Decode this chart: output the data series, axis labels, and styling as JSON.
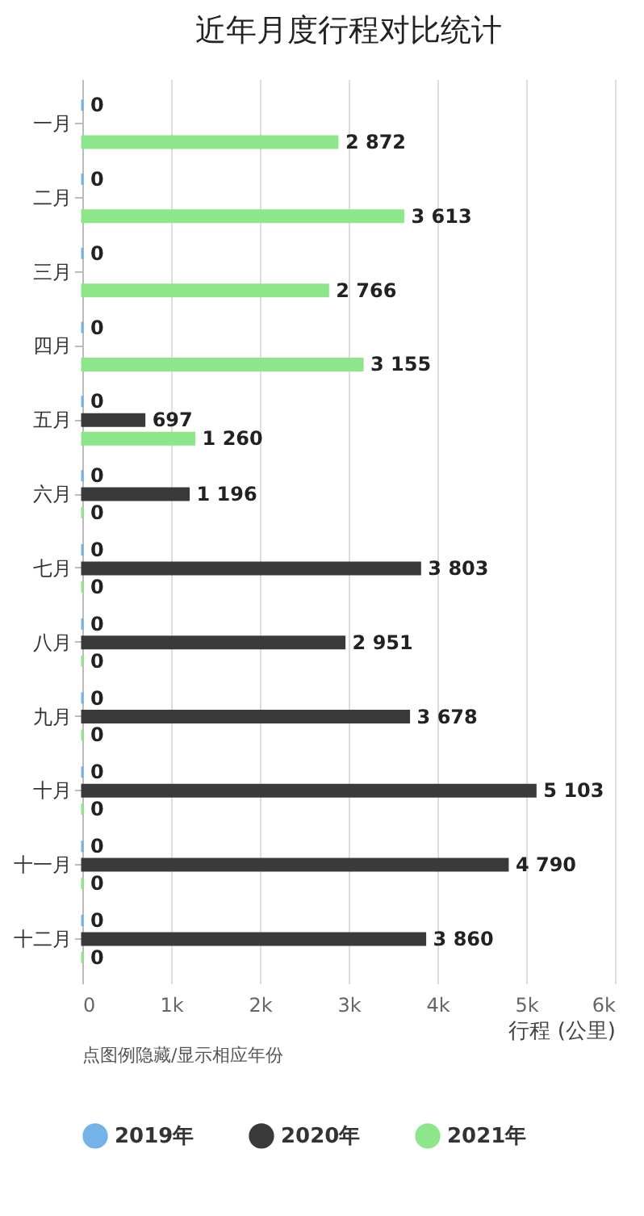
{
  "chart_data": {
    "type": "bar",
    "orientation": "horizontal",
    "title": "近年月度行程对比统计",
    "xlabel": "行程 (公里)",
    "categories": [
      "一月",
      "二月",
      "三月",
      "四月",
      "五月",
      "六月",
      "七月",
      "八月",
      "九月",
      "十月",
      "十一月",
      "十二月"
    ],
    "series": [
      {
        "name": "2019年",
        "color": "#73b3e8",
        "values": [
          0,
          0,
          0,
          0,
          0,
          0,
          0,
          0,
          0,
          0,
          0,
          0
        ],
        "value_labels": [
          "0",
          "0",
          "0",
          "0",
          "0",
          "0",
          "0",
          "0",
          "0",
          "0",
          "0",
          "0"
        ]
      },
      {
        "name": "2020年",
        "color": "#3a3a3a",
        "values": [
          null,
          null,
          null,
          null,
          697,
          1196,
          3803,
          2951,
          3678,
          5103,
          4790,
          3860
        ],
        "value_labels": [
          null,
          null,
          null,
          null,
          "697",
          "1 196",
          "3 803",
          "2 951",
          "3 678",
          "5 103",
          "4 790",
          "3 860"
        ]
      },
      {
        "name": "2021年",
        "color": "#8ee68a",
        "values": [
          2872,
          3613,
          2766,
          3155,
          1260,
          0,
          0,
          0,
          0,
          0,
          0,
          0
        ],
        "value_labels": [
          "2 872",
          "3 613",
          "2 766",
          "3 155",
          "1 260",
          "0",
          "0",
          "0",
          "0",
          "0",
          "0",
          "0"
        ]
      }
    ],
    "xlim": [
      0,
      6000
    ],
    "xticks": [
      0,
      {
        "value": 1000,
        "label": "1k"
      },
      {
        "value": 2000,
        "label": "2k"
      },
      {
        "value": 3000,
        "label": "3k"
      },
      {
        "value": 4000,
        "label": "4k"
      },
      {
        "value": 5000,
        "label": "5k"
      },
      {
        "value": 6000,
        "label": "6k"
      }
    ],
    "grid": "x",
    "legend": "bottom",
    "annotations": [
      "点图例隐藏/显示相应年份"
    ]
  }
}
